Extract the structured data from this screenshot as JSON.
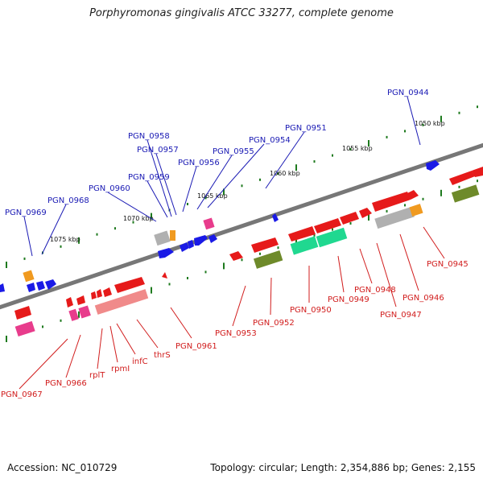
{
  "title": "Porphyromonas gingivalis ATCC 33277, complete genome",
  "footer": {
    "accession": "Accession: NC_010729",
    "topology": "Topology: circular; Length: 2,354,886 bp; Genes: 2,155"
  },
  "scale_labels": [
    "1050 kbp",
    "1055 kbp",
    "1060 kbp",
    "1065 kbp",
    "1070 kbp",
    "1075 kbp"
  ],
  "labels_top": [
    "PGN_0944",
    "PGN_0951",
    "PGN_0954",
    "PGN_0955",
    "PGN_0956",
    "PGN_0957",
    "PGN_0958",
    "PGN_0959",
    "PGN_0960",
    "PGN_0968",
    "PGN_0969"
  ],
  "labels_bottom": [
    "PGN_0945",
    "PGN_0946",
    "PGN_0947",
    "PGN_0948",
    "PGN_0949",
    "PGN_0950",
    "PGN_0952",
    "PGN_0953",
    "PGN_0961",
    "thrS",
    "infC",
    "rpmI",
    "rplT",
    "PGN_0966",
    "PGN_0967"
  ],
  "colors": {
    "label_top": "#1a1ab4",
    "label_bottom": "#d11c1c",
    "backbone": "#777777",
    "tick": "#1e7a1e",
    "cds_forward": "#1a1ae6",
    "cds_reverse": "#e61a1a",
    "rna": "#f09a20",
    "pink": "#e83c8c",
    "green": "#6e8a2a",
    "teal": "#20d890",
    "grey": "#b0b0b0"
  }
}
